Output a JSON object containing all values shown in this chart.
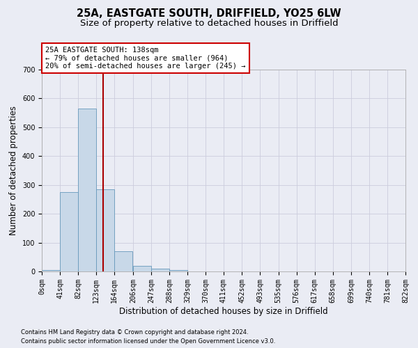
{
  "title1": "25A, EASTGATE SOUTH, DRIFFIELD, YO25 6LW",
  "title2": "Size of property relative to detached houses in Driffield",
  "xlabel": "Distribution of detached houses by size in Driffield",
  "ylabel": "Number of detached properties",
  "footer1": "Contains HM Land Registry data © Crown copyright and database right 2024.",
  "footer2": "Contains public sector information licensed under the Open Government Licence v3.0.",
  "bin_edges": [
    0,
    41,
    82,
    123,
    164,
    206,
    247,
    288,
    329,
    370,
    411,
    452,
    493,
    535,
    576,
    617,
    658,
    699,
    740,
    781,
    822
  ],
  "bin_counts": [
    5,
    275,
    565,
    285,
    70,
    20,
    10,
    5,
    0,
    0,
    0,
    0,
    0,
    0,
    0,
    0,
    0,
    0,
    0,
    0
  ],
  "bar_color": "#c8d8e8",
  "bar_edge_color": "#6699bb",
  "grid_color": "#ccccdd",
  "bg_color": "#eaecf4",
  "vline_x": 138,
  "vline_color": "#aa0000",
  "annotation_text": "25A EASTGATE SOUTH: 138sqm\n← 79% of detached houses are smaller (964)\n20% of semi-detached houses are larger (245) →",
  "annotation_box_color": "#ffffff",
  "annotation_box_edge": "#cc0000",
  "ylim": [
    0,
    700
  ],
  "yticks": [
    0,
    100,
    200,
    300,
    400,
    500,
    600,
    700
  ],
  "title1_fontsize": 10.5,
  "title2_fontsize": 9.5,
  "xlabel_fontsize": 8.5,
  "ylabel_fontsize": 8.5,
  "tick_fontsize": 7,
  "annotation_fontsize": 7.5,
  "footer_fontsize": 6
}
